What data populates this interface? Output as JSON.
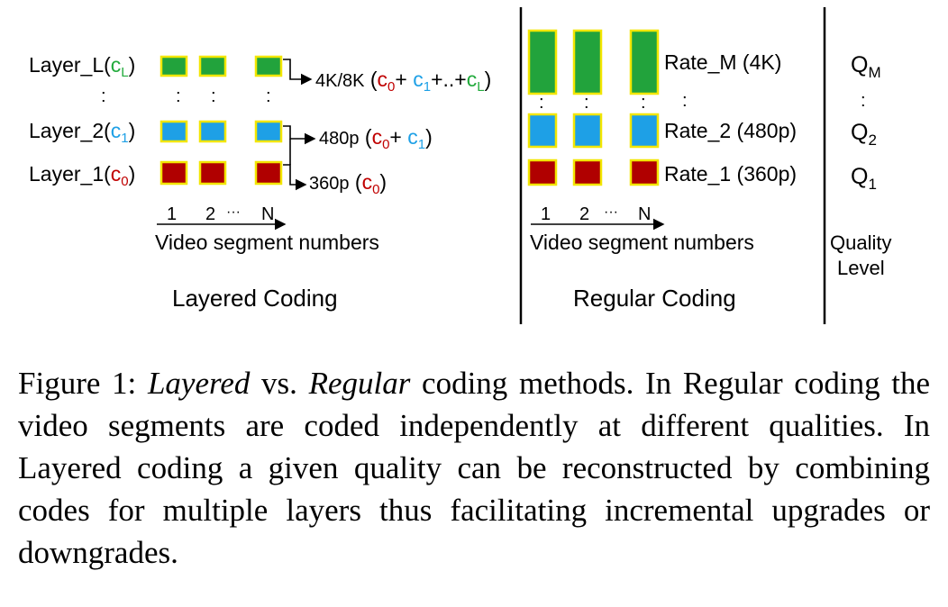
{
  "layered": {
    "title": "Layered Coding",
    "axis_label": "Video segment numbers",
    "axis_ticks": [
      "1",
      "2",
      "···",
      "N"
    ],
    "layers": [
      {
        "name": "Layer_L",
        "code": "c",
        "sub": "L",
        "color": "#22a33c"
      },
      {
        "name": "Layer_2",
        "code": "c",
        "sub": "1",
        "color": "#1ea0e6"
      },
      {
        "name": "Layer_1",
        "code": "c",
        "sub": "0",
        "color": "#b00000"
      }
    ],
    "outputs": [
      {
        "label": "4K/8K",
        "formula": "(c0+ c1+..+cL)"
      },
      {
        "label": "480p",
        "formula": "(c0+ c1)"
      },
      {
        "label": "360p",
        "formula": "(c0)"
      }
    ]
  },
  "regular": {
    "title": "Regular Coding",
    "axis_label": "Video segment numbers",
    "axis_ticks": [
      "1",
      "2",
      "···",
      "N"
    ],
    "rates": [
      {
        "label": "Rate_M (4K)",
        "color": "#22a33c"
      },
      {
        "label": "Rate_2 (480p)",
        "color": "#1ea0e6"
      },
      {
        "label": "Rate_1 (360p)",
        "color": "#b00000"
      }
    ]
  },
  "quality": {
    "title_line1": "Quality",
    "title_line2": "Level",
    "levels": [
      {
        "base": "Q",
        "sub": "M"
      },
      {
        "base": "Q",
        "sub": "2"
      },
      {
        "base": "Q",
        "sub": "1"
      }
    ]
  },
  "colors": {
    "block_border": "#f2e600",
    "c0": "#c00000",
    "c1": "#1ea0e6",
    "cL": "#22aa3c"
  },
  "caption": {
    "prefix": "Figure 1: ",
    "em1": "Layered",
    "mid": " vs. ",
    "em2": "Regular",
    "rest": " coding methods. In Regular coding the video segments are coded independently at different qualities. In Layered coding a given quality can be reconstructed by combining codes for multiple layers thus facilitating incremental upgrades or downgrades."
  }
}
